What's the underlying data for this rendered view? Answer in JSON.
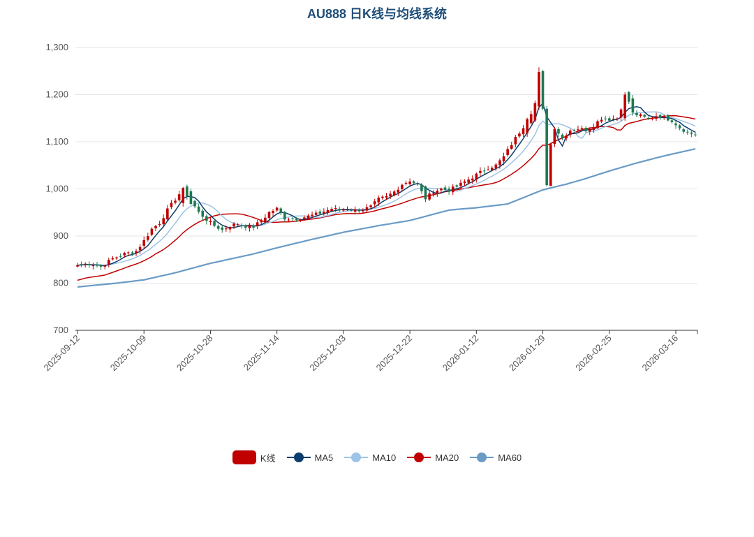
{
  "chart_data": {
    "type": "candlestick",
    "title": "AU888 日K线与均线系统",
    "ylim": [
      700,
      1300
    ],
    "yticks": [
      700,
      800,
      900,
      1000,
      1100,
      1200,
      1300
    ],
    "ytick_labels": [
      "700",
      "800",
      "900",
      "1,000",
      "1,100",
      "1,200",
      "1,300"
    ],
    "xtick_labels": [
      "2025-09-12",
      "2025-10-09",
      "2025-10-28",
      "2025-11-14",
      "2025-12-03",
      "2025-12-22",
      "2026-01-12",
      "2026-01-29",
      "2026-02-25",
      "2026-03-16"
    ],
    "xtick_index": [
      0,
      17,
      34,
      51,
      68,
      85,
      102,
      119,
      136,
      153
    ],
    "grid": true,
    "legend_position": "bottom",
    "colors": {
      "up": "#c00000",
      "down": "#1e7a50",
      "ma5": "#0b3d6e",
      "ma10": "#9dc3e6",
      "ma20": "#c00000",
      "ma60": "#6a9bc6"
    },
    "legend": [
      {
        "name": "K线",
        "kind": "box",
        "color": "#c00000"
      },
      {
        "name": "MA5",
        "kind": "line",
        "color": "#0b3d6e"
      },
      {
        "name": "MA10",
        "kind": "line",
        "color": "#9dc3e6"
      },
      {
        "name": "MA20",
        "kind": "line",
        "color": "#c00000"
      },
      {
        "name": "MA60",
        "kind": "line",
        "color": "#6a9bc6"
      }
    ],
    "close_keypoints": [
      [
        0,
        838
      ],
      [
        3,
        842
      ],
      [
        6,
        835
      ],
      [
        9,
        852
      ],
      [
        12,
        862
      ],
      [
        15,
        868
      ],
      [
        17,
        890
      ],
      [
        19,
        915
      ],
      [
        21,
        928
      ],
      [
        23,
        955
      ],
      [
        25,
        978
      ],
      [
        27,
        1000
      ],
      [
        29,
        975
      ],
      [
        31,
        950
      ],
      [
        33,
        935
      ],
      [
        35,
        922
      ],
      [
        37,
        913
      ],
      [
        39,
        922
      ],
      [
        41,
        926
      ],
      [
        43,
        921
      ],
      [
        45,
        920
      ],
      [
        47,
        932
      ],
      [
        49,
        950
      ],
      [
        51,
        958
      ],
      [
        53,
        938
      ],
      [
        55,
        936
      ],
      [
        57,
        938
      ],
      [
        59,
        942
      ],
      [
        61,
        946
      ],
      [
        63,
        952
      ],
      [
        65,
        958
      ],
      [
        67,
        955
      ],
      [
        69,
        958
      ],
      [
        71,
        955
      ],
      [
        73,
        956
      ],
      [
        75,
        962
      ],
      [
        77,
        978
      ],
      [
        79,
        983
      ],
      [
        81,
        994
      ],
      [
        83,
        1010
      ],
      [
        85,
        1018
      ],
      [
        87,
        1008
      ],
      [
        89,
        978
      ],
      [
        91,
        995
      ],
      [
        93,
        1000
      ],
      [
        95,
        997
      ],
      [
        97,
        1005
      ],
      [
        99,
        1015
      ],
      [
        101,
        1025
      ],
      [
        103,
        1035
      ],
      [
        105,
        1045
      ],
      [
        107,
        1050
      ],
      [
        109,
        1068
      ],
      [
        111,
        1095
      ],
      [
        113,
        1120
      ],
      [
        115,
        1145
      ],
      [
        117,
        1180
      ],
      [
        118,
        1245
      ],
      [
        119,
        1165
      ],
      [
        120,
        1010
      ],
      [
        121,
        1095
      ],
      [
        122,
        1130
      ],
      [
        124,
        1108
      ],
      [
        126,
        1125
      ],
      [
        128,
        1128
      ],
      [
        130,
        1125
      ],
      [
        132,
        1135
      ],
      [
        134,
        1150
      ],
      [
        136,
        1148
      ],
      [
        138,
        1150
      ],
      [
        140,
        1195
      ],
      [
        141,
        1190
      ],
      [
        142,
        1160
      ],
      [
        144,
        1155
      ],
      [
        146,
        1148
      ],
      [
        148,
        1155
      ],
      [
        150,
        1152
      ],
      [
        152,
        1145
      ],
      [
        154,
        1130
      ],
      [
        156,
        1120
      ],
      [
        158,
        1115
      ]
    ],
    "ma60_keypoints": [
      [
        0,
        792
      ],
      [
        10,
        800
      ],
      [
        17,
        807
      ],
      [
        25,
        822
      ],
      [
        34,
        842
      ],
      [
        45,
        862
      ],
      [
        51,
        875
      ],
      [
        60,
        893
      ],
      [
        68,
        908
      ],
      [
        77,
        922
      ],
      [
        85,
        933
      ],
      [
        95,
        955
      ],
      [
        102,
        960
      ],
      [
        110,
        968
      ],
      [
        119,
        998
      ],
      [
        125,
        1010
      ],
      [
        130,
        1022
      ],
      [
        136,
        1038
      ],
      [
        143,
        1055
      ],
      [
        150,
        1070
      ],
      [
        158,
        1085
      ]
    ]
  }
}
